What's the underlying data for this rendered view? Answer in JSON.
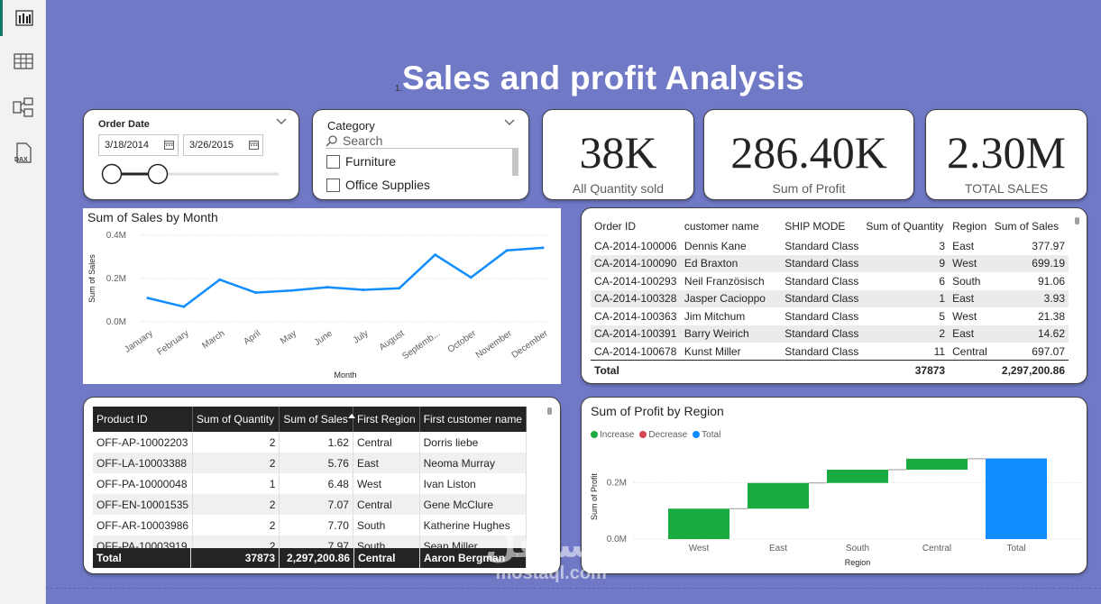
{
  "leftbar": {
    "icons": [
      "report-view-icon",
      "table-view-icon",
      "model-view-icon",
      "dax-query-icon"
    ]
  },
  "page": {
    "title": "Sales and profit Analysis",
    "title_marker": "1."
  },
  "date_slicer": {
    "title": "Order Date",
    "start": "3/18/2014",
    "end": "3/26/2015"
  },
  "category_slicer": {
    "title": "Category",
    "search_placeholder": "Search",
    "items": [
      "Furniture",
      "Office Supplies"
    ]
  },
  "kpis": [
    {
      "value": "38K",
      "label": "All Quantity sold"
    },
    {
      "value": "286.40K",
      "label": "Sum of Profit"
    },
    {
      "value": "2.30M",
      "label": "TOTAL SALES"
    }
  ],
  "orders_table": {
    "columns": [
      "Order ID",
      "customer name",
      "SHIP MODE",
      "Sum of Quantity",
      "Region",
      "Sum of Sales"
    ],
    "rows": [
      [
        "CA-2014-100006",
        "Dennis Kane",
        "Standard Class",
        "3",
        "East",
        "377.97"
      ],
      [
        "CA-2014-100090",
        "Ed Braxton",
        "Standard Class",
        "9",
        "West",
        "699.19"
      ],
      [
        "CA-2014-100293",
        "Neil Französisch",
        "Standard Class",
        "6",
        "South",
        "91.06"
      ],
      [
        "CA-2014-100328",
        "Jasper Cacioppo",
        "Standard Class",
        "1",
        "East",
        "3.93"
      ],
      [
        "CA-2014-100363",
        "Jim Mitchum",
        "Standard Class",
        "5",
        "West",
        "21.38"
      ],
      [
        "CA-2014-100391",
        "Barry Weirich",
        "Standard Class",
        "2",
        "East",
        "14.62"
      ],
      [
        "CA-2014-100678",
        "Kunst Miller",
        "Standard Class",
        "11",
        "Central",
        "697.07"
      ]
    ],
    "total_label": "Total",
    "total_quantity": "37873",
    "total_sales": "2,297,200.86"
  },
  "product_table": {
    "columns": [
      "Product ID",
      "Sum of Quantity",
      "Sum of Sales",
      "First Region",
      "First customer name"
    ],
    "rows": [
      [
        "OFF-AP-10002203",
        "2",
        "1.62",
        "Central",
        "Dorris liebe"
      ],
      [
        "OFF-LA-10003388",
        "2",
        "5.76",
        "East",
        "Neoma Murray"
      ],
      [
        "OFF-PA-10000048",
        "1",
        "6.48",
        "West",
        "Ivan Liston"
      ],
      [
        "OFF-EN-10001535",
        "2",
        "7.07",
        "Central",
        "Gene McClure"
      ],
      [
        "OFF-AR-10003986",
        "2",
        "7.70",
        "South",
        "Katherine Hughes"
      ],
      [
        "OFF-PA-10003919",
        "2",
        "7.97",
        "South",
        "Sean Miller"
      ]
    ],
    "total": [
      "Total",
      "37873",
      "2,297,200.86",
      "Central",
      "Aaron Bergman"
    ]
  },
  "chart_data": [
    {
      "type": "line",
      "title": "Sum of Sales by Month",
      "xlabel": "Month",
      "ylabel": "Sum of Sales",
      "categories": [
        "January",
        "February",
        "March",
        "April",
        "May",
        "June",
        "July",
        "August",
        "September",
        "October",
        "November",
        "December"
      ],
      "tick_labels": [
        "January",
        "February",
        "March",
        "April",
        "May",
        "June",
        "July",
        "August",
        "Septemb...",
        "October",
        "November",
        "December"
      ],
      "values": [
        110000,
        70000,
        195000,
        135000,
        145000,
        160000,
        148000,
        155000,
        310000,
        205000,
        330000,
        342000
      ],
      "ylim": [
        0,
        400000
      ],
      "yticks": [
        {
          "value": 0,
          "label": "0.0M"
        },
        {
          "value": 200000,
          "label": "0.2M"
        },
        {
          "value": 400000,
          "label": "0.4M"
        }
      ],
      "color": "#118dff"
    },
    {
      "type": "bar",
      "subtype": "waterfall",
      "title": "Sum of Profit by Region",
      "xlabel": "Region",
      "ylabel": "Sum of Profit",
      "categories": [
        "West",
        "East",
        "South",
        "Central",
        "Total"
      ],
      "values": [
        108000,
        91000,
        47000,
        39000,
        286000
      ],
      "ylim": [
        0,
        310000
      ],
      "yticks": [
        {
          "value": 0,
          "label": "0.0M"
        },
        {
          "value": 200000,
          "label": "0.2M"
        }
      ],
      "legend": [
        {
          "label": "Increase",
          "color": "#1aab40"
        },
        {
          "label": "Decrease",
          "color": "#d64554"
        },
        {
          "label": "Total",
          "color": "#118dff"
        }
      ]
    }
  ],
  "watermark": {
    "arabic": "مستقل",
    "latin": "mostaql.com"
  }
}
